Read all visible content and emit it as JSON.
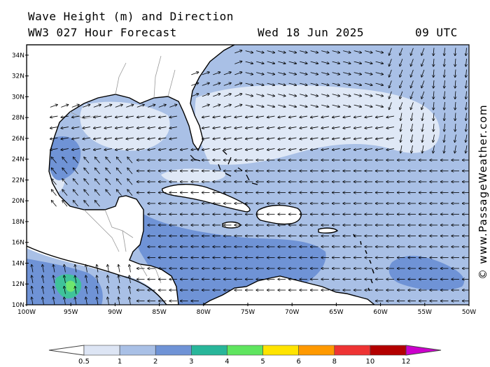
{
  "title": {
    "line1": "Wave Height (m) and Direction",
    "line2": "WW3 027 Hour Forecast",
    "date": "Wed 18 Jun 2025",
    "time": "09 UTC"
  },
  "credit": "© www.PassageWeather.com",
  "map": {
    "lon_range": [
      -100,
      -50
    ],
    "lat_range": [
      10,
      35
    ],
    "lon_ticks": [
      "100W",
      "95W",
      "90W",
      "85W",
      "80W",
      "75W",
      "70W",
      "65W",
      "60W",
      "55W",
      "50W"
    ],
    "lat_ticks": [
      "10N",
      "12N",
      "14N",
      "16N",
      "18N",
      "20N",
      "22N",
      "24N",
      "26N",
      "28N",
      "30N",
      "32N",
      "34N"
    ],
    "colors": {
      "land": "#ffffff",
      "sea_05_1": "#a9c0e6",
      "sea_0_05": "#dfe8f6",
      "sea_1_2": "#6f93d6",
      "sea_2_3": "#3fc39a",
      "sea_3_4": "#6ee66e",
      "coast": "#000000"
    }
  },
  "colorbar": {
    "labels": [
      "0.5",
      "1",
      "2",
      "3",
      "4",
      "5",
      "6",
      "8",
      "10",
      "12"
    ],
    "colors": [
      "#dde5f4",
      "#a9c0e6",
      "#6f93d6",
      "#28b69a",
      "#5fe55f",
      "#ffe400",
      "#ff9900",
      "#ee3333",
      "#b30000",
      "#cc00cc"
    ]
  }
}
